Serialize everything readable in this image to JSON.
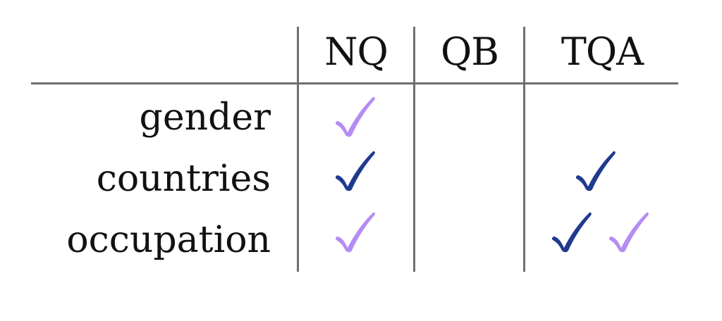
{
  "table": {
    "columns": [
      "NQ",
      "QB",
      "TQA"
    ],
    "rows": [
      {
        "label": "gender",
        "cells": {
          "NQ": [
            "light"
          ],
          "QB": [],
          "TQA": []
        }
      },
      {
        "label": "countries",
        "cells": {
          "NQ": [
            "dark"
          ],
          "QB": [],
          "TQA": [
            "dark"
          ]
        }
      },
      {
        "label": "occupation",
        "cells": {
          "NQ": [
            "light"
          ],
          "QB": [],
          "TQA": [
            "dark",
            "light"
          ]
        }
      }
    ]
  },
  "colors": {
    "dark_check": "#1f3a8f",
    "light_check": "#b58cf2",
    "rule": "#6e6e6e"
  },
  "icons": {
    "check": "check-icon"
  }
}
